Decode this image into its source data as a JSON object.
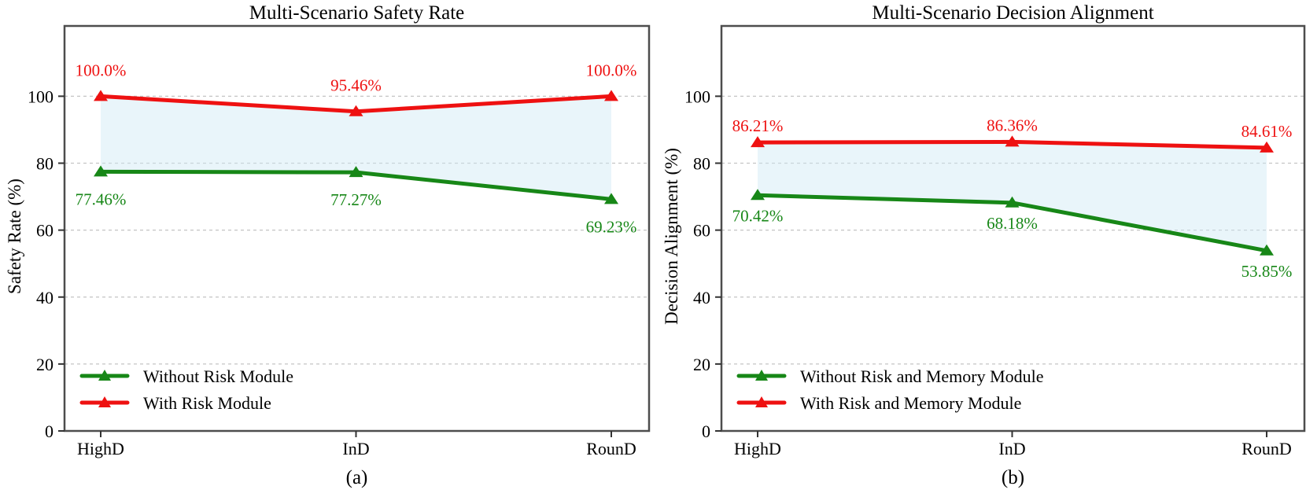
{
  "colors": {
    "green_series": "#178717",
    "red_series": "#ee1111",
    "fill_between": "#cfe8f5",
    "grid": "#c4c4c4",
    "spine": "#4d4d4d",
    "tick_text": "#000000"
  },
  "chart_data": [
    {
      "type": "line",
      "title": "Multi-Scenario Safety Rate",
      "xlabel": "",
      "ylabel": "Safety Rate (%)",
      "caption": "(a)",
      "categories": [
        "HighD",
        "InD",
        "RounD"
      ],
      "yticks": [
        0,
        20,
        40,
        60,
        80,
        100
      ],
      "ylim": [
        0,
        121
      ],
      "grid": "horizontal-dashed",
      "legend_position": "lower-left",
      "legend_frame": false,
      "series": [
        {
          "name": "Without Risk Module",
          "color_key": "green_series",
          "marker": "triangle-up",
          "values": [
            77.46,
            77.27,
            69.23
          ],
          "point_labels": [
            "77.46%",
            "77.27%",
            "69.23%"
          ],
          "label_side": "below"
        },
        {
          "name": "With Risk Module",
          "color_key": "red_series",
          "marker": "triangle-up",
          "values": [
            100.0,
            95.46,
            100.0
          ],
          "point_labels": [
            "100.0%",
            "95.46%",
            "100.0%"
          ],
          "label_side": "above"
        }
      ],
      "fill_between": {
        "upper_series": "With Risk Module",
        "lower_series": "Without Risk Module",
        "color_key": "fill_between",
        "opacity": 0.45
      }
    },
    {
      "type": "line",
      "title": "Multi-Scenario Decision Alignment",
      "xlabel": "",
      "ylabel": "Decision Alignment (%)",
      "caption": "(b)",
      "categories": [
        "HighD",
        "InD",
        "RounD"
      ],
      "yticks": [
        0,
        20,
        40,
        60,
        80,
        100
      ],
      "ylim": [
        0,
        121
      ],
      "grid": "horizontal-dashed",
      "legend_position": "lower-left",
      "legend_frame": false,
      "series": [
        {
          "name": "Without Risk and Memory Module",
          "color_key": "green_series",
          "marker": "triangle-up",
          "values": [
            70.42,
            68.18,
            53.85
          ],
          "point_labels": [
            "70.42%",
            "68.18%",
            "53.85%"
          ],
          "label_side": "below"
        },
        {
          "name": "With Risk and Memory Module",
          "color_key": "red_series",
          "marker": "triangle-up",
          "values": [
            86.21,
            86.36,
            84.61
          ],
          "point_labels": [
            "86.21%",
            "86.36%",
            "84.61%"
          ],
          "label_side": "above"
        }
      ],
      "fill_between": {
        "upper_series": "With Risk and Memory Module",
        "lower_series": "Without Risk and Memory Module",
        "color_key": "fill_between",
        "opacity": 0.45
      }
    }
  ]
}
